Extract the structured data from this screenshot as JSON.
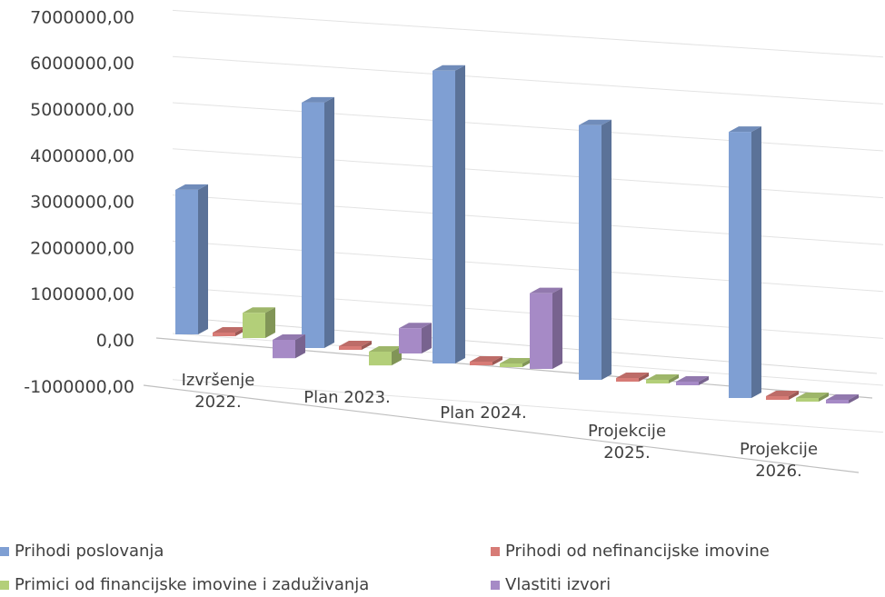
{
  "chart_data": {
    "type": "bar",
    "title": "",
    "xlabel": "",
    "ylabel": "",
    "ylim": [
      -1000000,
      7000000
    ],
    "y_ticks": [
      "7000000,00",
      "6000000,00",
      "5000000,00",
      "4000000,00",
      "3000000,00",
      "2000000,00",
      "1000000,00",
      "0,00",
      "-1000000,00"
    ],
    "y_tick_values": [
      7000000,
      6000000,
      5000000,
      4000000,
      3000000,
      2000000,
      1000000,
      0,
      -1000000
    ],
    "categories": [
      [
        "Izvršenje",
        "2022."
      ],
      [
        "Plan 2023."
      ],
      [
        "Plan 2024."
      ],
      [
        "Projekcije",
        "2025."
      ],
      [
        "Projekcije",
        "2026."
      ]
    ],
    "series": [
      {
        "name": "Prihodi poslovanja",
        "color": "#7f9fd3",
        "values": [
          3150000,
          5350000,
          6380000,
          5550000,
          5800000
        ]
      },
      {
        "name": "Prihodi od nefinancijske imovine",
        "color": "#d77b76",
        "values": [
          0,
          0,
          0,
          0,
          0
        ]
      },
      {
        "name": "Primici od financijske imovine i zaduživanja",
        "color": "#b3cf79",
        "values": [
          550000,
          -300000,
          0,
          0,
          0
        ]
      },
      {
        "name": "Vlastiti izvori",
        "color": "#a68ac6",
        "values": [
          -400000,
          550000,
          1650000,
          0,
          0
        ]
      }
    ],
    "grid": true,
    "legend_position": "bottom"
  }
}
